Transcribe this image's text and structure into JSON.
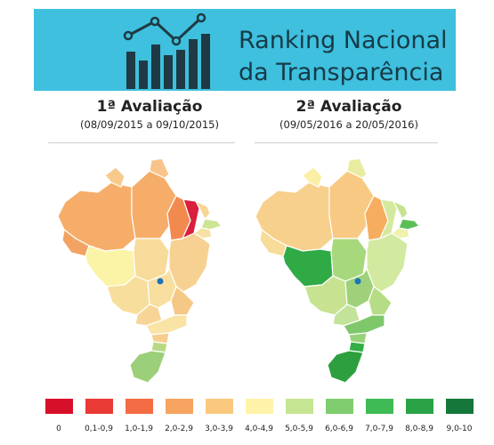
{
  "header": {
    "title_line1": "Ranking Nacional",
    "title_line2": "da Transparência",
    "logo_icon": "bar-chart-trend-icon"
  },
  "evaluations": [
    {
      "title": "1ª Avaliação",
      "range": "(08/09/2015 a 09/10/2015)",
      "state_colors": {
        "north-west": "#f6ad69",
        "north-east": "#f6ad69",
        "top-north": "#f7c98b",
        "far-west": "#f2a363",
        "east-north": "#f8c48a",
        "upper-east-1": "#f28a4f",
        "upper-east-2": "#d91f3c",
        "east-coast-1": "#f8d495",
        "east-coast-2": "#cfe596",
        "small-coast": "#f8e1a4",
        "central-west": "#fbf3a6",
        "south-west": "#f7de9c",
        "central": "#f8da9a",
        "east-big": "#f7d191",
        "center-1": "#f8df9f",
        "center-2": "#f5c886",
        "south-center": "#f9e4a6",
        "south-1": "#f7cd8e",
        "south-east": "#f7d597",
        "south-2": "#b9d985",
        "south-3": "#9ccf7a"
      }
    },
    {
      "title": "2ª Avaliação",
      "range": "(09/05/2016 a 20/05/2016)",
      "state_colors": {
        "north-west": "#f8d08d",
        "north-east": "#f8c983",
        "top-north": "#fbeea5",
        "far-west": "#f6dc98",
        "east-north": "#e9eba0",
        "upper-east-1": "#f6ad5f",
        "upper-east-2": "#d4e99d",
        "east-coast-1": "#c6e38f",
        "east-coast-2": "#5bbf58",
        "small-coast": "#eef2aa",
        "central-west": "#2faa45",
        "south-west": "#c7e391",
        "central": "#a7d87c",
        "east-big": "#d2eaa0",
        "center-1": "#9ed17a",
        "center-2": "#b6dd86",
        "south-center": "#7ec86b",
        "south-1": "#96d27a",
        "south-east": "#c3e29a",
        "south-2": "#33ae44",
        "south-3": "#2e9f3e"
      }
    }
  ],
  "legend": [
    {
      "label": "0",
      "color": "#d7102a"
    },
    {
      "label": "0,1-0,9",
      "color": "#ea3a36"
    },
    {
      "label": "1,0-1,9",
      "color": "#f36c44"
    },
    {
      "label": "2,0-2,9",
      "color": "#f6a460"
    },
    {
      "label": "3,0-3,9",
      "color": "#fac97f"
    },
    {
      "label": "4,0-4,9",
      "color": "#fff3a9"
    },
    {
      "label": "5,0-5,9",
      "color": "#c5e593"
    },
    {
      "label": "6,0-6,9",
      "color": "#7fcd6e"
    },
    {
      "label": "7,0-7,9",
      "color": "#3fbb55"
    },
    {
      "label": "8,0-8,9",
      "color": "#2aa347"
    },
    {
      "label": "9,0-10",
      "color": "#16773a"
    }
  ]
}
